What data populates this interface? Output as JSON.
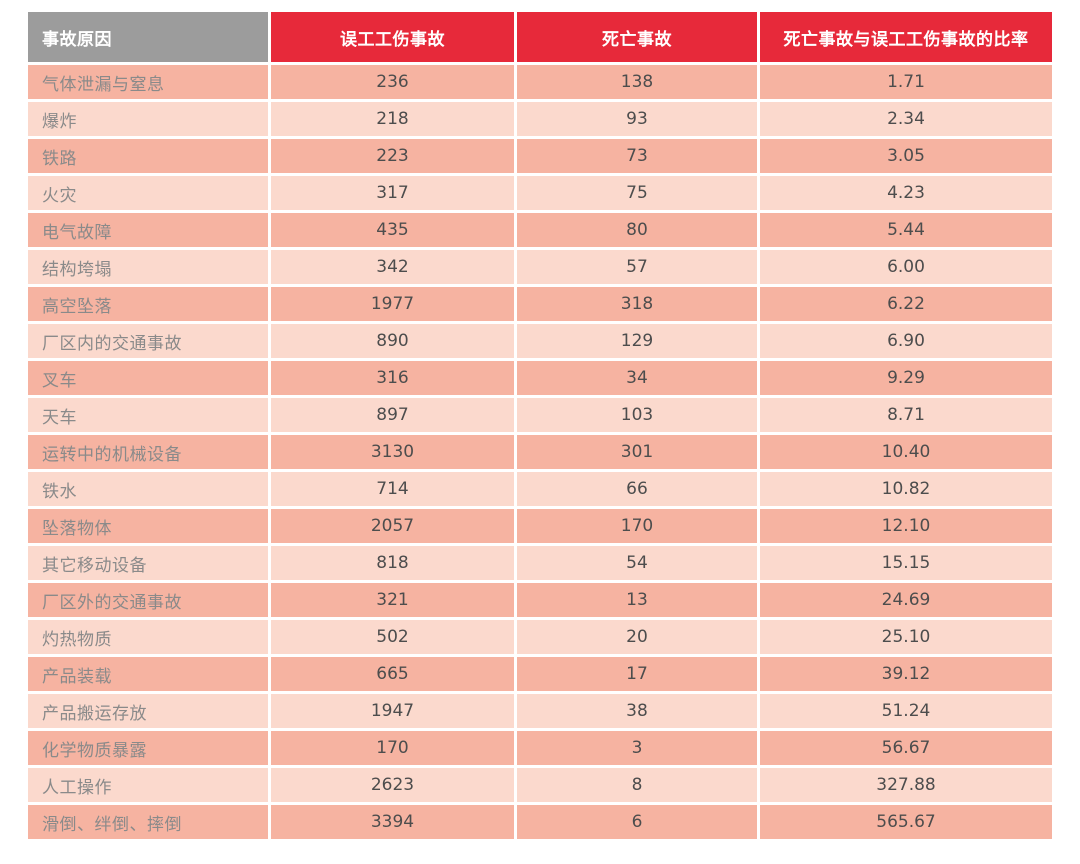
{
  "chart_data": {
    "type": "table",
    "columns": [
      "事故原因",
      "误工工伤事故",
      "死亡事故",
      "死亡事故与误工工伤事故的比率"
    ],
    "rows": [
      [
        "气体泄漏与窒息",
        "236",
        "138",
        "1.71"
      ],
      [
        "爆炸",
        "218",
        "93",
        "2.34"
      ],
      [
        "铁路",
        "223",
        "73",
        "3.05"
      ],
      [
        "火灾",
        "317",
        "75",
        "4.23"
      ],
      [
        "电气故障",
        "435",
        "80",
        "5.44"
      ],
      [
        "结构垮塌",
        "342",
        "57",
        "6.00"
      ],
      [
        "高空坠落",
        "1977",
        "318",
        "6.22"
      ],
      [
        "厂区内的交通事故",
        "890",
        "129",
        "6.90"
      ],
      [
        "叉车",
        "316",
        "34",
        "9.29"
      ],
      [
        "天车",
        "897",
        "103",
        "8.71"
      ],
      [
        "运转中的机械设备",
        "3130",
        "301",
        "10.40"
      ],
      [
        "铁水",
        "714",
        "66",
        "10.82"
      ],
      [
        "坠落物体",
        "2057",
        "170",
        "12.10"
      ],
      [
        "其它移动设备",
        "818",
        "54",
        "15.15"
      ],
      [
        "厂区外的交通事故",
        "321",
        "13",
        "24.69"
      ],
      [
        "灼热物质",
        "502",
        "20",
        "25.10"
      ],
      [
        "产品装载",
        "665",
        "17",
        "39.12"
      ],
      [
        "产品搬运存放",
        "1947",
        "38",
        "51.24"
      ],
      [
        "化学物质暴露",
        "170",
        "3",
        "56.67"
      ],
      [
        "人工操作",
        "2623",
        "8",
        "327.88"
      ],
      [
        "滑倒、绊倒、摔倒",
        "3394",
        "6",
        "565.67"
      ]
    ]
  },
  "colors": {
    "background": "#ffffff",
    "header_gray": "#9c9c9c",
    "header_red": "#e7293a",
    "row_dark": "#f6b3a1",
    "row_light": "#fbd9cd",
    "header_text": "#ffffff",
    "label_text": "#8a8a8a",
    "value_text": "#4d4d4d"
  }
}
